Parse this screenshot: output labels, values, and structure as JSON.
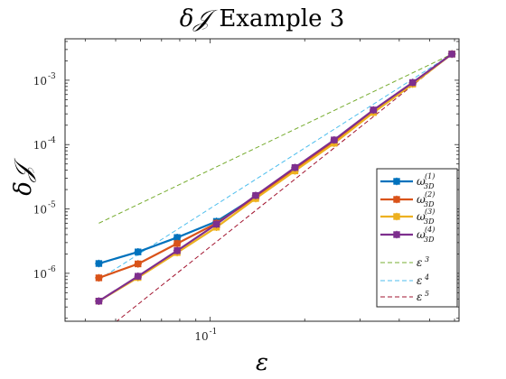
{
  "chart_data": {
    "type": "line",
    "title": "δ𝒥 Example 3",
    "title_parts": {
      "symbol": "δ𝒥",
      "text": "Example 3"
    },
    "xlabel": "ε",
    "ylabel": "δ𝒥",
    "xscale": "log",
    "yscale": "log",
    "xlim": [
      0.0345,
      0.62
    ],
    "ylim": [
      1.8e-07,
      0.0044
    ],
    "xticks": [
      {
        "value": 0.1,
        "label": "10",
        "exp": "-1"
      }
    ],
    "yticks": [
      {
        "value": 1e-06,
        "label": "10",
        "exp": "-6"
      },
      {
        "value": 1e-05,
        "label": "10",
        "exp": "-5"
      },
      {
        "value": 0.0001,
        "label": "10",
        "exp": "-4"
      },
      {
        "value": 0.001,
        "label": "10",
        "exp": "-3"
      }
    ],
    "legend_position": "bottom-right",
    "x": [
      0.0442,
      0.0589,
      0.0785,
      0.1047,
      0.1396,
      0.1862,
      0.2482,
      0.331,
      0.4413,
      0.5884
    ],
    "series": [
      {
        "name": "ω3D(1)",
        "legend": {
          "base": "ω",
          "sub": "3D",
          "sup": "(1)"
        },
        "color": "#0072BD",
        "style": "solid",
        "marker": true,
        "values": [
          1.42e-06,
          2.15e-06,
          3.6e-06,
          6.4e-06,
          1.55e-05,
          4.2e-05,
          0.000112,
          0.00033,
          0.0009,
          0.00255
        ]
      },
      {
        "name": "ω3D(2)",
        "legend": {
          "base": "ω",
          "sub": "3D",
          "sup": "(2)"
        },
        "color": "#D95319",
        "style": "solid",
        "marker": true,
        "values": [
          8.5e-07,
          1.4e-06,
          2.9e-06,
          6e-06,
          1.52e-05,
          4.15e-05,
          0.000111,
          0.00033,
          0.0009,
          0.00255
        ]
      },
      {
        "name": "ω3D(3)",
        "legend": {
          "base": "ω",
          "sub": "3D",
          "sup": "(3)"
        },
        "color": "#EDB120",
        "style": "solid",
        "marker": true,
        "values": [
          3.7e-07,
          8.6e-07,
          2.1e-06,
          5.2e-06,
          1.45e-05,
          3.9e-05,
          0.000105,
          0.000315,
          0.00087,
          0.00255
        ]
      },
      {
        "name": "ω3D(4)",
        "legend": {
          "base": "ω",
          "sub": "3D",
          "sup": "(4)"
        },
        "color": "#7E2F8E",
        "style": "solid",
        "marker": true,
        "values": [
          3.7e-07,
          9e-07,
          2.25e-06,
          5.8e-06,
          1.62e-05,
          4.4e-05,
          0.000118,
          0.000345,
          0.00092,
          0.00255
        ]
      },
      {
        "name": "ε3",
        "legend": {
          "base": "ε",
          "sub": "",
          "sup": "3"
        },
        "color": "#77AC30",
        "style": "dashed",
        "marker": false,
        "values": [
          6e-06,
          0.00255
        ],
        "x": [
          0.0442,
          0.5884
        ]
      },
      {
        "name": "ε4",
        "legend": {
          "base": "ε",
          "sub": "",
          "sup": "4"
        },
        "color": "#4DBEEE",
        "style": "dashed",
        "marker": false,
        "values": [
          8e-07,
          0.00255
        ],
        "x": [
          0.0442,
          0.5884
        ]
      },
      {
        "name": "ε5",
        "legend": {
          "base": "ε",
          "sub": "",
          "sup": "5"
        },
        "color": "#A2142F",
        "style": "dashed",
        "marker": false,
        "values": [
          1.08e-07,
          0.00255
        ],
        "x": [
          0.0442,
          0.5884
        ]
      }
    ]
  }
}
